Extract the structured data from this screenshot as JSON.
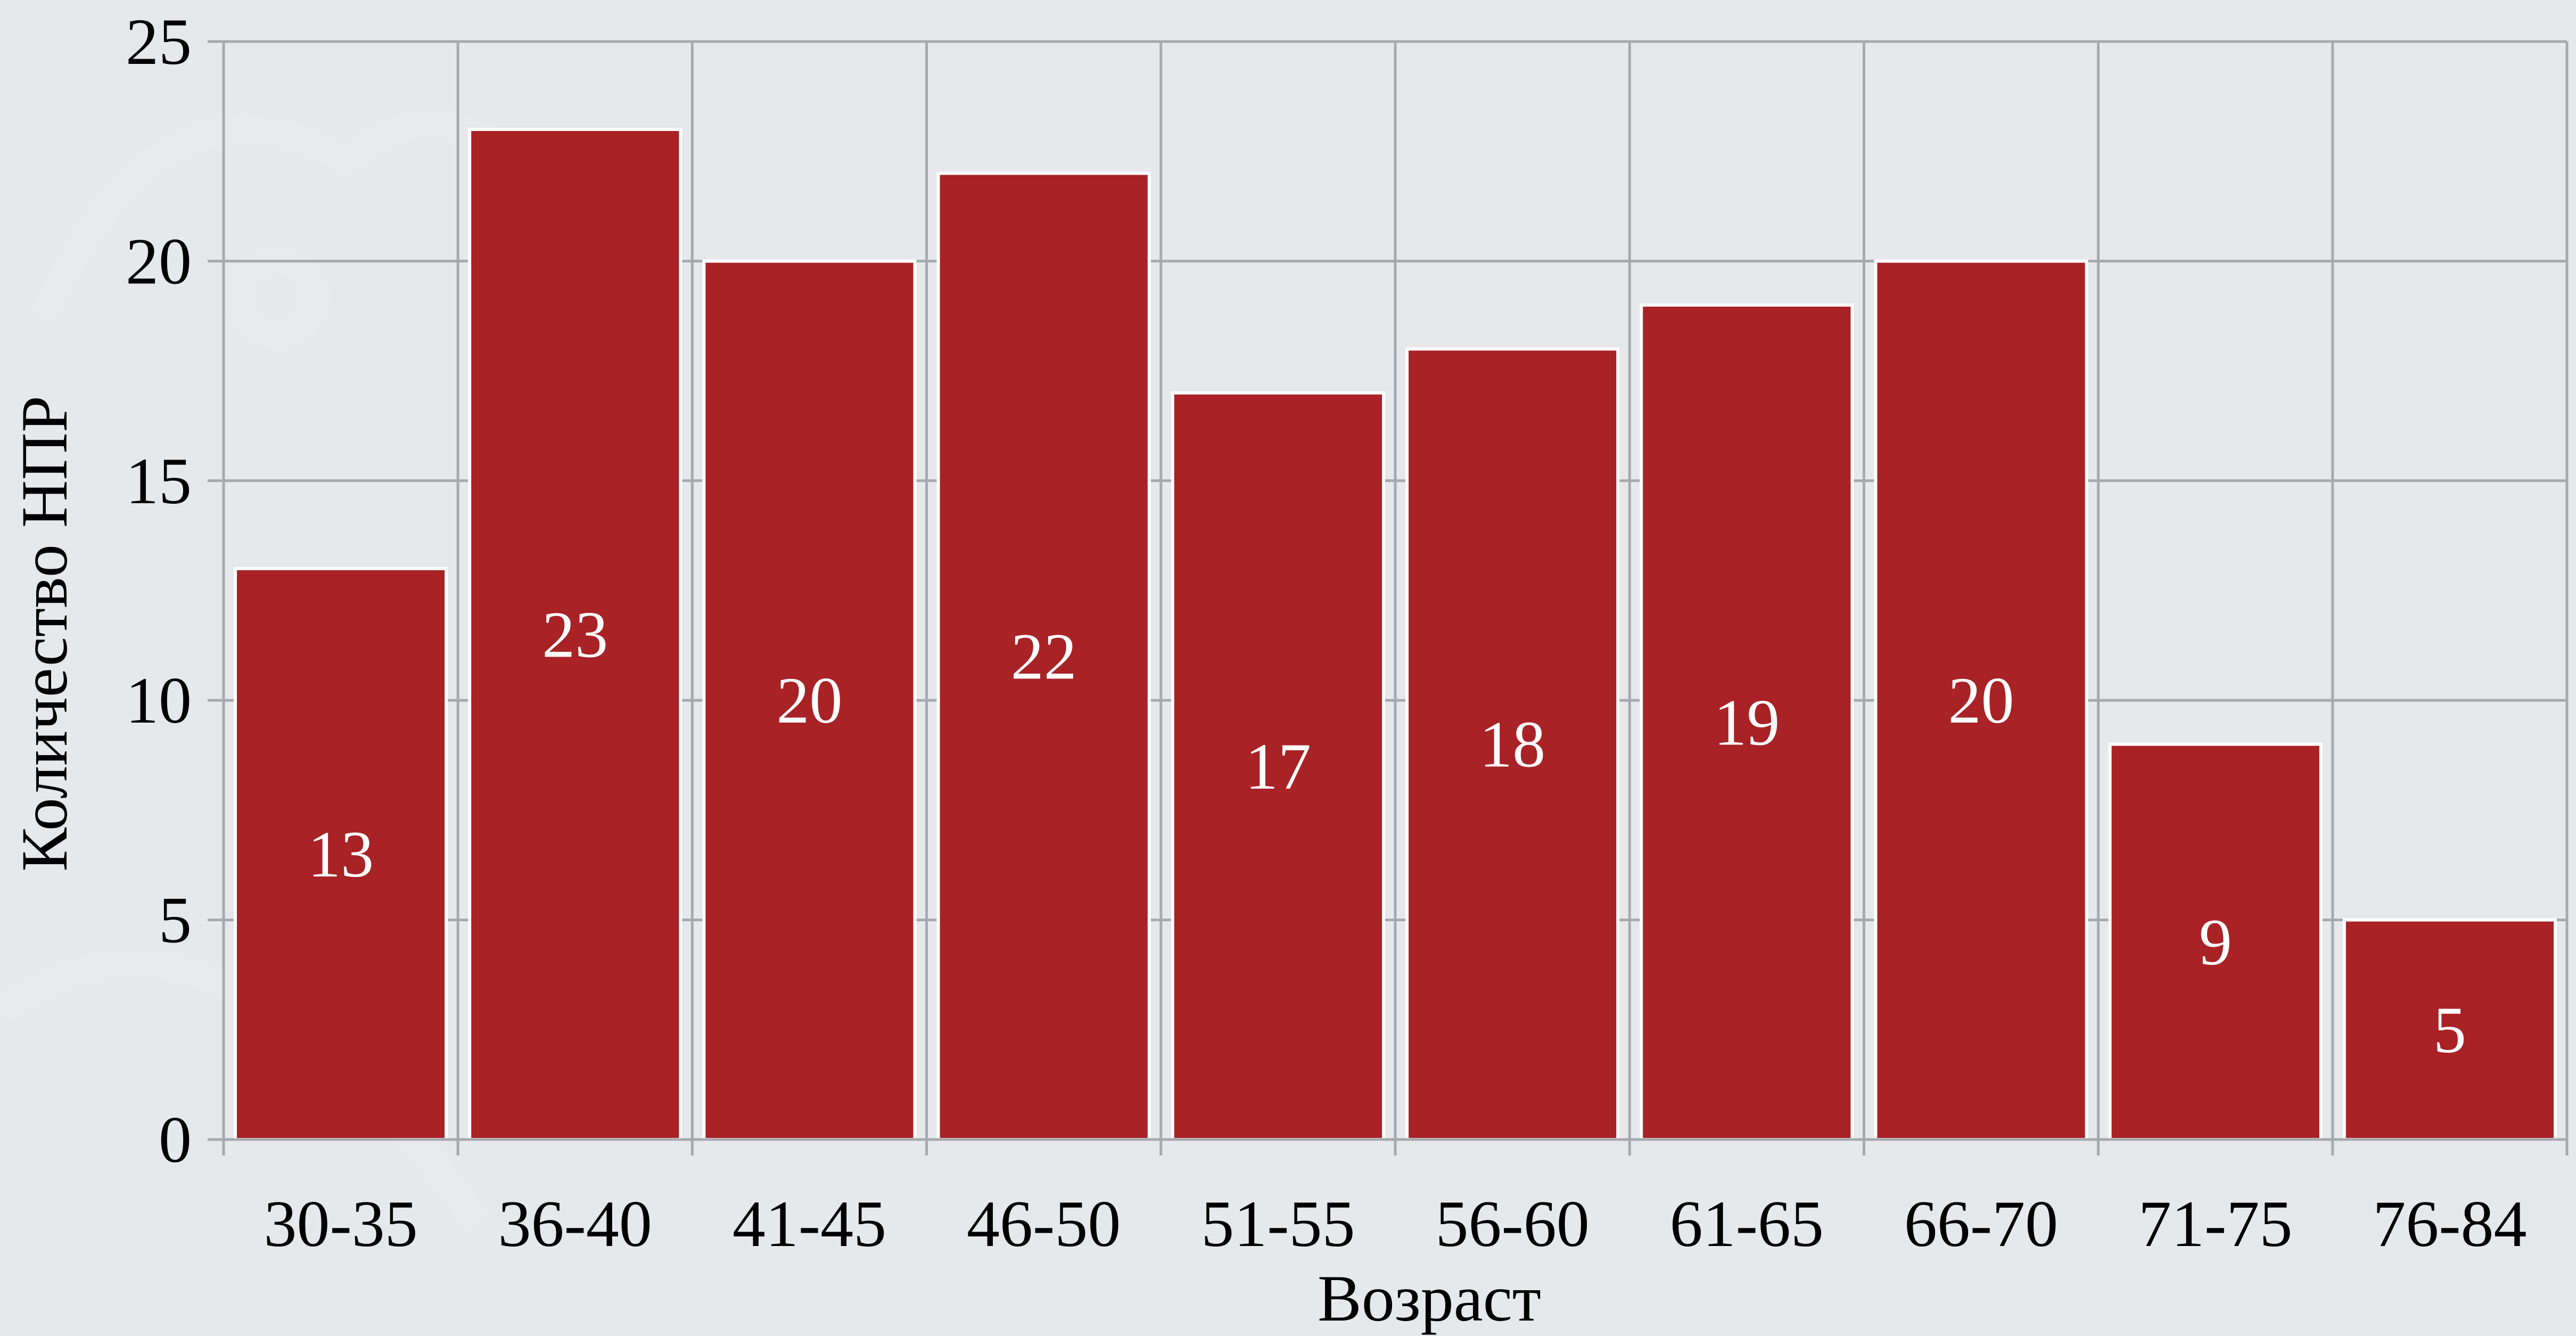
{
  "chart_data": {
    "type": "bar",
    "categories": [
      "30-35",
      "36-40",
      "41-45",
      "46-50",
      "51-55",
      "56-60",
      "61-65",
      "66-70",
      "71-75",
      "76-84"
    ],
    "values": [
      13,
      23,
      20,
      22,
      17,
      18,
      19,
      20,
      9,
      5
    ],
    "data_labels": [
      "13",
      "23",
      "20",
      "22",
      "17",
      "18",
      "19",
      "20",
      "9",
      "5"
    ],
    "xlabel": "Возраст",
    "ylabel": "Количество НПР",
    "ylim": [
      0,
      25
    ],
    "yticks": [
      0,
      5,
      10,
      15,
      20,
      25
    ],
    "grid": true,
    "bar_color": "#a82226",
    "label_color": "#ffffff"
  }
}
